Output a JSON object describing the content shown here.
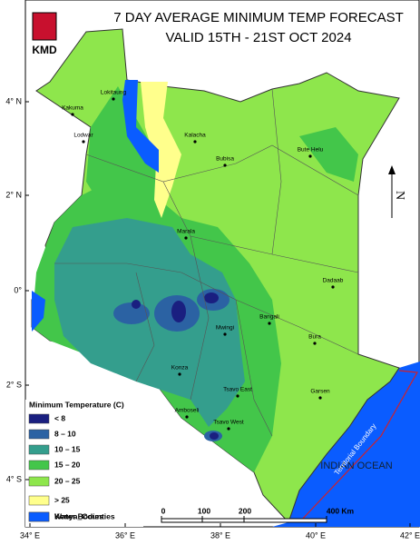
{
  "title": [
    "7 DAY AVERAGE MINIMUM TEMP FORECAST",
    "VALID 15TH - 21ST OCT  2024"
  ],
  "logo_text": "KMD",
  "lat_labels": [
    "4° N",
    "2° N",
    "0°",
    "2° S",
    "4° S"
  ],
  "lon_labels": [
    "34° E",
    "36° E",
    "38° E",
    "40° E",
    "42° E"
  ],
  "legend": {
    "title": "Minimum Temperature (C)",
    "items": [
      {
        "label": "< 8",
        "color": "#1a1f80"
      },
      {
        "label": "8 – 10",
        "color": "#2b62a3"
      },
      {
        "label": "10 – 15",
        "color": "#349e8d"
      },
      {
        "label": "15 – 20",
        "color": "#43c64a"
      },
      {
        "label": "20 – 25",
        "color": "#8ee64c"
      },
      {
        "label": "> 25",
        "color": "#ffff8c"
      },
      {
        "label": "Kenya_Counties",
        "color": "#ffffff"
      },
      {
        "label": "Water Bodies",
        "color": "#0a5cff"
      }
    ]
  },
  "towns": [
    "Lokitaung",
    "Kakuma",
    "Lodwar",
    "Kalacha",
    "Bubisa",
    "Bute Helu",
    "Marala",
    "Dadaab",
    "Bangali",
    "Mwingi",
    "Bura",
    "Konza",
    "Tsavo East",
    "Garsen",
    "Amboseli",
    "Tsavo West"
  ],
  "scale_labels": [
    "0",
    "100",
    "200",
    "400 Km"
  ],
  "ocean_label": "INDIAN OCEAN",
  "boundary_label": "Territorial Boundary",
  "north_label": "N"
}
